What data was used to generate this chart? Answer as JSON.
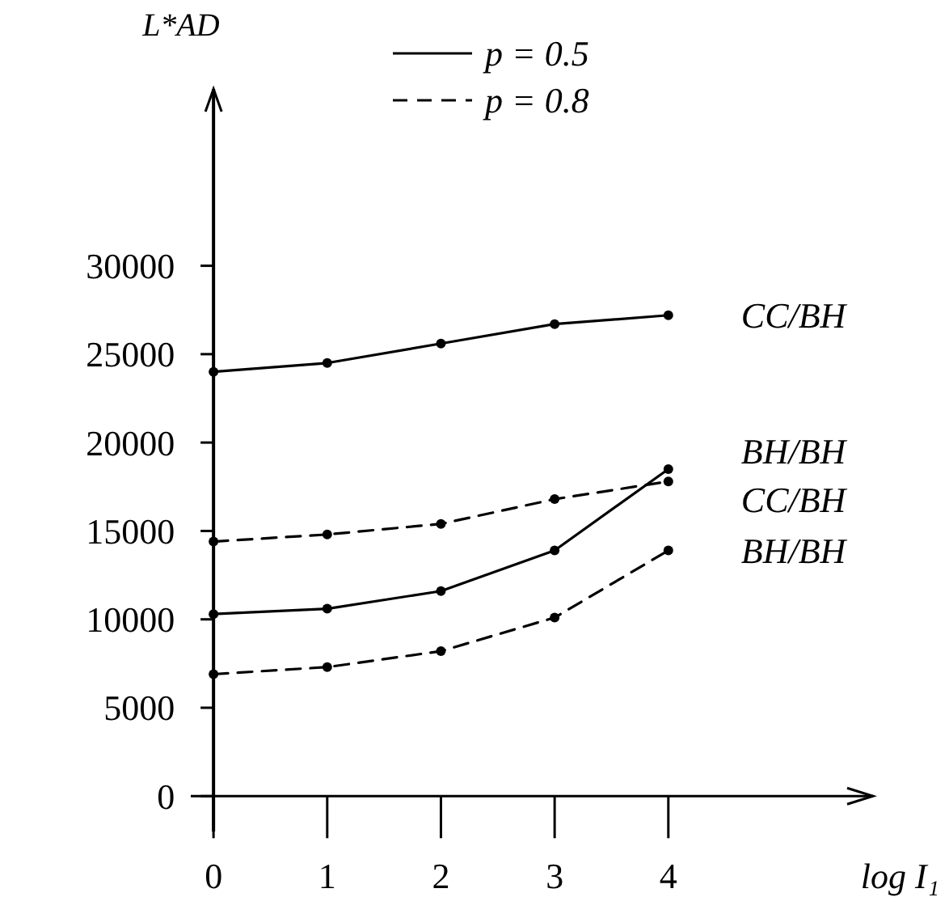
{
  "chart_data": {
    "type": "line",
    "ylabel": "L*AD",
    "xlabel": "log I₁",
    "x": [
      0,
      1,
      2,
      3,
      4
    ],
    "xlim": [
      -0.2,
      5.8
    ],
    "xticks": [
      0,
      1,
      2,
      3,
      4
    ],
    "ylim": [
      -2000,
      40000
    ],
    "yticks": [
      0,
      5000,
      10000,
      15000,
      20000,
      25000,
      30000
    ],
    "marker": "circle",
    "grid": false,
    "annotations": [
      "p = 0.5",
      "p = 0.8"
    ],
    "series": [
      {
        "name": "CC/BH",
        "color": "#000000",
        "line_style": "solid",
        "values": [
          24000,
          24500,
          25600,
          26700,
          27200
        ]
      },
      {
        "name": "BH/BH",
        "color": "#000000",
        "line_style": "solid",
        "values": [
          10300,
          10600,
          11600,
          13900,
          18500
        ]
      },
      {
        "name": "CC/BH",
        "color": "#000000",
        "line_style": "dashed",
        "values": [
          14400,
          14800,
          15400,
          16800,
          17800
        ]
      },
      {
        "name": "BH/BH",
        "color": "#000000",
        "line_style": "dashed",
        "values": [
          6900,
          7300,
          8200,
          10100,
          13900
        ]
      }
    ]
  }
}
